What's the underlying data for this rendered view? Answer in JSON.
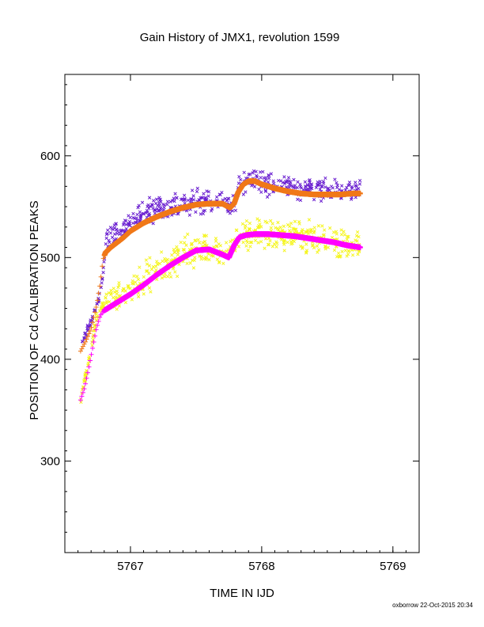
{
  "chart_data": {
    "type": "scatter",
    "title": "Gain History of JMX1, revolution 1599",
    "xlabel": "TIME IN IJD",
    "ylabel": "POSITION OF Cd CALIBRATION PEAKS",
    "xlim": [
      5766.5,
      5769.2
    ],
    "ylim": [
      210,
      680
    ],
    "x_ticks": [
      5767,
      5768,
      5769
    ],
    "y_ticks": [
      300,
      400,
      500,
      600
    ],
    "grid": false,
    "footer": "oxborrow 22-Oct-2015 20:34",
    "series": [
      {
        "marker": "x",
        "color": "#6a1fd0",
        "description_points": [
          [
            5766.62,
            412
          ],
          [
            5766.66,
            425
          ],
          [
            5766.7,
            438
          ],
          [
            5766.74,
            452
          ],
          [
            5766.78,
            470
          ],
          [
            5766.82,
            522
          ],
          [
            5766.86,
            520
          ],
          [
            5766.9,
            524
          ],
          [
            5766.95,
            528
          ],
          [
            5767.0,
            535
          ],
          [
            5767.05,
            540
          ],
          [
            5767.1,
            544
          ],
          [
            5767.15,
            546
          ],
          [
            5767.2,
            548
          ],
          [
            5767.25,
            549
          ],
          [
            5767.3,
            550
          ],
          [
            5767.35,
            551
          ],
          [
            5767.4,
            553
          ],
          [
            5767.45,
            554
          ],
          [
            5767.5,
            555
          ],
          [
            5767.55,
            556
          ],
          [
            5767.6,
            556
          ],
          [
            5767.65,
            555
          ],
          [
            5767.7,
            554
          ],
          [
            5767.75,
            552
          ],
          [
            5767.8,
            556
          ],
          [
            5767.84,
            570
          ],
          [
            5767.88,
            576
          ],
          [
            5767.93,
            578
          ],
          [
            5767.98,
            576
          ],
          [
            5768.05,
            574
          ],
          [
            5768.12,
            572
          ],
          [
            5768.2,
            570
          ],
          [
            5768.3,
            568
          ],
          [
            5768.4,
            567
          ],
          [
            5768.5,
            566
          ],
          [
            5768.6,
            566
          ],
          [
            5768.7,
            566
          ],
          [
            5768.75,
            566
          ]
        ]
      },
      {
        "marker": "x",
        "color": "#f5f51e",
        "description_points": [
          [
            5766.62,
            360
          ],
          [
            5766.66,
            385
          ],
          [
            5766.7,
            410
          ],
          [
            5766.74,
            440
          ],
          [
            5766.78,
            452
          ],
          [
            5766.85,
            456
          ],
          [
            5766.95,
            463
          ],
          [
            5767.05,
            473
          ],
          [
            5767.15,
            483
          ],
          [
            5767.25,
            492
          ],
          [
            5767.35,
            499
          ],
          [
            5767.45,
            505
          ],
          [
            5767.55,
            509
          ],
          [
            5767.65,
            508
          ],
          [
            5767.75,
            502
          ],
          [
            5767.8,
            512
          ],
          [
            5767.85,
            522
          ],
          [
            5767.95,
            525
          ],
          [
            5768.1,
            524
          ],
          [
            5768.25,
            522
          ],
          [
            5768.4,
            519
          ],
          [
            5768.55,
            515
          ],
          [
            5768.75,
            511
          ]
        ]
      },
      {
        "marker": "+",
        "color": "#f07818",
        "fit": true,
        "points": [
          [
            5766.62,
            408
          ],
          [
            5766.66,
            418
          ],
          [
            5766.7,
            430
          ],
          [
            5766.74,
            452
          ],
          [
            5766.77,
            475
          ],
          [
            5766.79,
            498
          ],
          [
            5766.81,
            505
          ],
          [
            5766.85,
            510
          ],
          [
            5766.9,
            515
          ],
          [
            5766.95,
            520
          ],
          [
            5767.0,
            526
          ],
          [
            5767.1,
            534
          ],
          [
            5767.2,
            540
          ],
          [
            5767.3,
            545
          ],
          [
            5767.4,
            549
          ],
          [
            5767.5,
            552
          ],
          [
            5767.6,
            553
          ],
          [
            5767.7,
            553
          ],
          [
            5767.76,
            549
          ],
          [
            5767.79,
            553
          ],
          [
            5767.82,
            564
          ],
          [
            5767.86,
            572
          ],
          [
            5767.9,
            575
          ],
          [
            5767.95,
            575
          ],
          [
            5768.0,
            572
          ],
          [
            5768.1,
            568
          ],
          [
            5768.2,
            565
          ],
          [
            5768.3,
            563
          ],
          [
            5768.4,
            562
          ],
          [
            5768.5,
            562
          ],
          [
            5768.6,
            562
          ],
          [
            5768.7,
            563
          ],
          [
            5768.75,
            563
          ]
        ]
      },
      {
        "marker": "+",
        "color": "#ff00ff",
        "fit": true,
        "points": [
          [
            5766.62,
            360
          ],
          [
            5766.65,
            372
          ],
          [
            5766.68,
            390
          ],
          [
            5766.71,
            410
          ],
          [
            5766.74,
            430
          ],
          [
            5766.77,
            443
          ],
          [
            5766.8,
            448
          ],
          [
            5766.9,
            456
          ],
          [
            5767.0,
            464
          ],
          [
            5767.1,
            473
          ],
          [
            5767.2,
            483
          ],
          [
            5767.3,
            492
          ],
          [
            5767.4,
            500
          ],
          [
            5767.5,
            507
          ],
          [
            5767.6,
            508
          ],
          [
            5767.7,
            503
          ],
          [
            5767.75,
            500
          ],
          [
            5767.79,
            512
          ],
          [
            5767.83,
            520
          ],
          [
            5767.88,
            522
          ],
          [
            5767.95,
            523
          ],
          [
            5768.05,
            523
          ],
          [
            5768.15,
            522
          ],
          [
            5768.25,
            521
          ],
          [
            5768.35,
            519
          ],
          [
            5768.45,
            517
          ],
          [
            5768.55,
            515
          ],
          [
            5768.65,
            512
          ],
          [
            5768.75,
            510
          ]
        ]
      }
    ]
  }
}
